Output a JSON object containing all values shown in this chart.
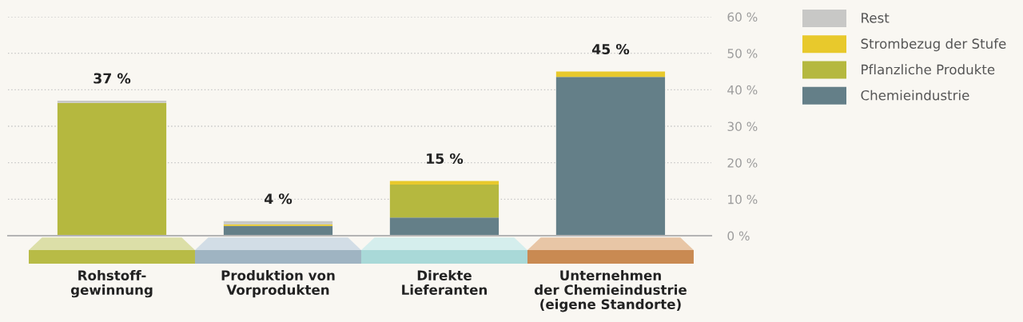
{
  "chart_data": {
    "type": "bar",
    "stacked": true,
    "categories": [
      "Rohstoff-\ngewinnung",
      "Produktion von\nVorprodukten",
      "Direkte\nLieferanten",
      "Unternehmen\nder Chemieindustrie\n(eigene Standorte)"
    ],
    "series": [
      {
        "name": "Chemieindustrie",
        "color": "#647f88",
        "values": [
          null,
          2.7,
          5,
          43.5
        ]
      },
      {
        "name": "Pflanzliche Produkte",
        "color": "#b5b83f",
        "values": [
          36.4,
          null,
          9,
          null
        ]
      },
      {
        "name": "Strombezug der Stufe",
        "color": "#e8c92c",
        "values": [
          null,
          0.4,
          1,
          1.5
        ]
      },
      {
        "name": "Rest",
        "color": "#c8c8c6",
        "values": [
          0.6,
          0.9,
          null,
          null
        ]
      }
    ],
    "ylim": [
      0,
      60
    ],
    "yticks": [
      {
        "value": 0,
        "label": "0 %"
      },
      {
        "value": 10,
        "label": "10 %"
      },
      {
        "value": 20,
        "label": "20 %"
      },
      {
        "value": 30,
        "label": "30 %"
      },
      {
        "value": 40,
        "label": "40 %"
      },
      {
        "value": 50,
        "label": "50 %"
      },
      {
        "value": 60,
        "label": "60 %"
      }
    ],
    "grid": "y",
    "legend": "top right",
    "totals": [
      "37 %",
      "4 %",
      "15 %",
      "45 %"
    ]
  }
}
